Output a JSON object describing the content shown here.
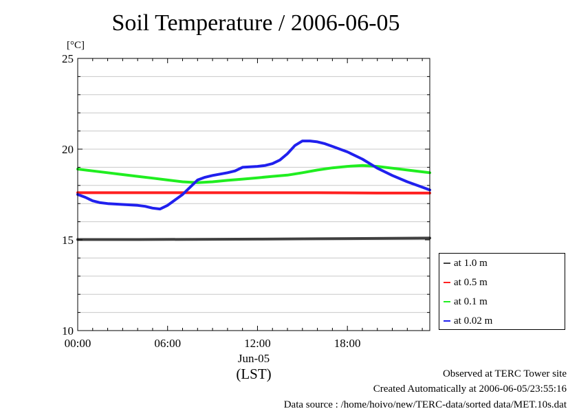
{
  "title": "Soil Temperature / 2006-06-05",
  "chart_data": {
    "type": "line",
    "title": "Soil Temperature / 2006-06-05",
    "ylabel": "[°C]",
    "xlabel": "(LST)",
    "x_date_label": "Jun-05",
    "xlim": [
      0,
      23.5
    ],
    "ylim": [
      10,
      25
    ],
    "x_ticks": [
      0,
      6,
      12,
      18
    ],
    "x_tick_labels": [
      "00:00",
      "06:00",
      "12:00",
      "18:00"
    ],
    "y_ticks": [
      10,
      15,
      20,
      25
    ],
    "y_tick_labels": [
      "10",
      "15",
      "20",
      "25"
    ],
    "grid": "horizontal",
    "legend_position": "right",
    "series": [
      {
        "name": "at 1.0 m",
        "color": "#404040",
        "x": [
          0,
          4,
          8,
          12,
          16,
          20,
          23.5
        ],
        "y": [
          15.02,
          15.02,
          15.03,
          15.04,
          15.06,
          15.08,
          15.1
        ]
      },
      {
        "name": "at 0.5 m",
        "color": "#ff2020",
        "x": [
          0,
          4,
          8,
          12,
          16,
          20,
          23.5
        ],
        "y": [
          17.6,
          17.6,
          17.6,
          17.6,
          17.6,
          17.58,
          17.58
        ]
      },
      {
        "name": "at 0.1 m",
        "color": "#20ee20",
        "x": [
          0,
          1,
          2,
          3,
          4,
          5,
          6,
          7,
          8,
          9,
          10,
          11,
          12,
          13,
          14,
          15,
          16,
          17,
          18,
          19,
          20,
          21,
          22,
          23,
          23.5
        ],
        "y": [
          18.9,
          18.8,
          18.7,
          18.6,
          18.5,
          18.4,
          18.3,
          18.2,
          18.15,
          18.2,
          18.28,
          18.35,
          18.42,
          18.5,
          18.57,
          18.7,
          18.85,
          18.97,
          19.05,
          19.1,
          19.05,
          18.95,
          18.85,
          18.75,
          18.7
        ]
      },
      {
        "name": "at 0.02 m",
        "color": "#2020ee",
        "x": [
          0,
          0.5,
          1,
          1.5,
          2,
          3,
          4,
          4.5,
          5,
          5.5,
          6,
          6.5,
          7,
          7.5,
          8,
          8.5,
          9,
          10,
          10.5,
          11,
          12,
          12.5,
          13,
          13.5,
          14,
          14.5,
          15,
          15.5,
          16,
          16.5,
          17,
          18,
          19,
          20,
          21,
          22,
          23,
          23.5
        ],
        "y": [
          17.5,
          17.35,
          17.15,
          17.05,
          17.0,
          16.95,
          16.9,
          16.85,
          16.75,
          16.7,
          16.9,
          17.2,
          17.5,
          17.9,
          18.3,
          18.45,
          18.55,
          18.7,
          18.8,
          19.0,
          19.05,
          19.1,
          19.2,
          19.4,
          19.75,
          20.2,
          20.45,
          20.45,
          20.4,
          20.3,
          20.15,
          19.85,
          19.45,
          18.95,
          18.55,
          18.2,
          17.9,
          17.75
        ]
      }
    ]
  },
  "footer": {
    "observed": "Observed at TERC Tower site",
    "created": "Created Automatically at 2006-06-05/23:55:16",
    "source": "Data source : /home/hoivo/new/TERC-data/sorted  data/MET.10s.dat"
  }
}
